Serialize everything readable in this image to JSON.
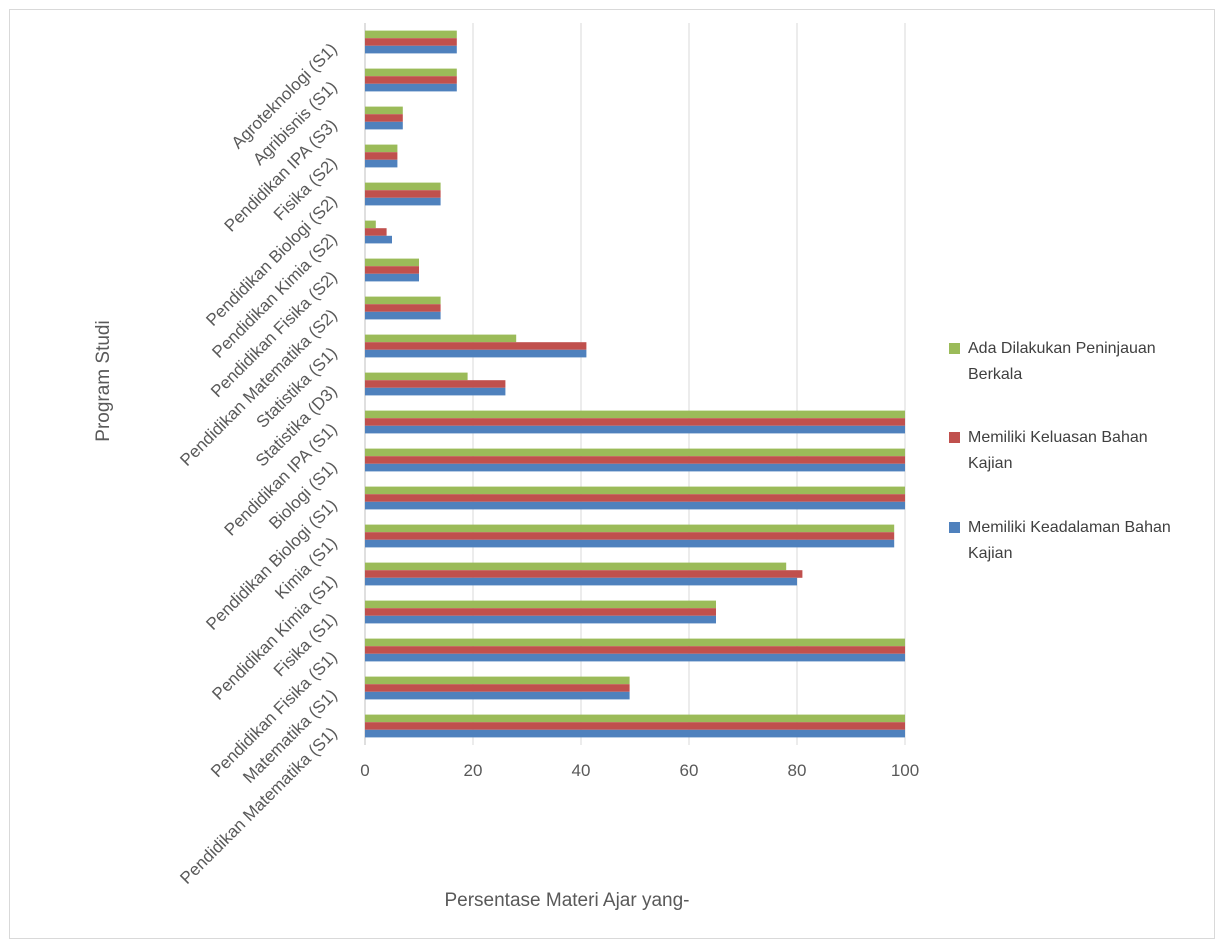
{
  "chart_data": {
    "type": "bar",
    "orientation": "horizontal",
    "title": "",
    "xlabel": "Persentase Materi Ajar yang-",
    "ylabel": "Program Studi",
    "xlim": [
      0,
      100
    ],
    "x_ticks": [
      "0",
      "20",
      "40",
      "60",
      "80",
      "100"
    ],
    "grid": "vertical",
    "legend_position": "right",
    "categories": [
      "Agroteknologi (S1)",
      "Agribisnis (S1)",
      "Pendidikan IPA (S3)",
      "Fisika (S2)",
      "Pendidikan Biologi (S2)",
      "Pendidikan Kimia (S2)",
      "Pendidikan Fisika (S2)",
      "Pendidikan Matematika (S2)",
      "Statistika (S1)",
      "Statistika (D3)",
      "Pendidikan IPA (S1)",
      "Biologi (S1)",
      "Pendidikan Biologi (S1)",
      "Kimia (S1)",
      "Pendidikan Kimia (S1)",
      "Fisika (S1)",
      "Pendidikan Fisika (S1)",
      "Matematika (S1)",
      "Pendidikan Matematika (S1)"
    ],
    "series": [
      {
        "name": "Ada Dilakukan Peninjauan Berkala",
        "legend_lines": [
          "Ada Dilakukan Peninjauan",
          "Berkala"
        ],
        "color": "#9bbb59",
        "values": [
          17,
          17,
          7,
          6,
          14,
          2,
          10,
          14,
          28,
          19,
          100,
          100,
          100,
          98,
          78,
          65,
          100,
          49,
          100
        ]
      },
      {
        "name": "Memiliki Keluasan Bahan Kajian",
        "legend_lines": [
          "Memiliki Keluasan Bahan",
          "Kajian"
        ],
        "color": "#c0504d",
        "values": [
          17,
          17,
          7,
          6,
          14,
          4,
          10,
          14,
          41,
          26,
          100,
          100,
          100,
          98,
          81,
          65,
          100,
          49,
          100
        ]
      },
      {
        "name": "Memiliki Keadalaman Bahan Kajian",
        "legend_lines": [
          "Memiliki Keadalaman Bahan",
          "Kajian"
        ],
        "color": "#4f81bd",
        "values": [
          17,
          17,
          7,
          6,
          14,
          5,
          10,
          14,
          41,
          26,
          100,
          100,
          100,
          98,
          80,
          65,
          100,
          49,
          100
        ]
      }
    ]
  }
}
